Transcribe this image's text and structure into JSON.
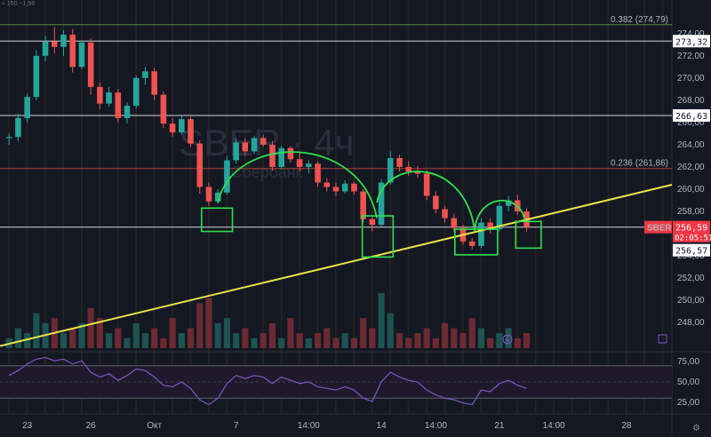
{
  "top_note": {
    "text": "≈ 150 −1,56"
  },
  "chart_data": {
    "type": "candlestick",
    "symbol": "SBER",
    "watermark": "SBER · 4ч",
    "watermark_sub": "Сбербанк",
    "ylim": [
      245.7,
      275.9
    ],
    "x_range": [
      -1,
      73
    ],
    "y_ticks": [
      "274,00",
      "272,00",
      "270,00",
      "268,00",
      "266,00",
      "264,00",
      "262,00",
      "260,00",
      "258,00",
      "256,00",
      "254,00",
      "252,00",
      "250,00",
      "248,00"
    ],
    "y_tick_values": [
      274,
      272,
      270,
      268,
      266,
      264,
      262,
      260,
      258,
      256,
      254,
      252,
      250,
      248
    ],
    "x_ticks": [
      {
        "label": "23",
        "x": 2
      },
      {
        "label": "26",
        "x": 9
      },
      {
        "label": "Окт",
        "x": 16
      },
      {
        "label": "7",
        "x": 25
      },
      {
        "label": "14:00",
        "x": 33
      },
      {
        "label": "14",
        "x": 41
      },
      {
        "label": "14:00",
        "x": 47
      },
      {
        "label": "21",
        "x": 54
      },
      {
        "label": "14:00",
        "x": 60
      },
      {
        "label": "28",
        "x": 68
      }
    ],
    "h_levels": [
      {
        "value": 274.8,
        "label": "0.382 (274,79)",
        "color": "#5b8a4a"
      },
      {
        "value": 273.32,
        "label": "273,32",
        "color": "#d1d4dc",
        "badge": true
      },
      {
        "value": 266.63,
        "label": "266,63",
        "color": "#d1d4dc",
        "badge": true
      },
      {
        "value": 261.86,
        "label": "0.236 (261,86)",
        "color": "#b23a3a"
      },
      {
        "value": 256.59,
        "label": "256,59",
        "color": "#d1d4dc"
      }
    ],
    "price_tag": {
      "symbol": "SBER",
      "price": "256,59",
      "countdown": "02:05:51",
      "low": "256,57",
      "color": "#f23645"
    },
    "candles": [
      [
        264.6,
        265.0,
        264.0,
        264.7
      ],
      [
        264.7,
        266.8,
        264.3,
        266.4
      ],
      [
        266.4,
        268.6,
        266.0,
        268.3
      ],
      [
        268.3,
        272.5,
        268.0,
        272.0
      ],
      [
        272.0,
        273.8,
        271.5,
        273.3
      ],
      [
        273.3,
        274.6,
        272.2,
        272.8
      ],
      [
        272.8,
        274.3,
        272.0,
        273.9
      ],
      [
        273.9,
        274.4,
        270.5,
        271.0
      ],
      [
        271.0,
        273.4,
        270.8,
        273.2
      ],
      [
        273.2,
        273.6,
        268.5,
        269.2
      ],
      [
        269.2,
        269.6,
        267.2,
        267.7
      ],
      [
        267.7,
        269.2,
        267.4,
        268.7
      ],
      [
        268.7,
        269.0,
        266.0,
        266.4
      ],
      [
        266.4,
        267.8,
        265.9,
        267.5
      ],
      [
        267.5,
        270.2,
        267.3,
        270.0
      ],
      [
        270.0,
        271.0,
        269.4,
        270.6
      ],
      [
        270.6,
        270.9,
        268.0,
        268.5
      ],
      [
        268.5,
        268.8,
        265.5,
        265.9
      ],
      [
        265.9,
        266.4,
        264.7,
        265.1
      ],
      [
        265.1,
        266.6,
        264.9,
        266.3
      ],
      [
        266.3,
        266.5,
        263.8,
        264.1
      ],
      [
        264.1,
        264.4,
        259.6,
        260.2
      ],
      [
        260.2,
        260.6,
        258.5,
        258.9
      ],
      [
        258.9,
        260.0,
        258.7,
        259.7
      ],
      [
        259.7,
        263.0,
        259.5,
        262.6
      ],
      [
        262.6,
        264.6,
        262.3,
        264.2
      ],
      [
        264.2,
        264.6,
        263.0,
        263.4
      ],
      [
        263.4,
        264.8,
        263.2,
        264.6
      ],
      [
        264.6,
        264.9,
        263.8,
        264.0
      ],
      [
        264.0,
        264.3,
        261.7,
        262.0
      ],
      [
        262.0,
        263.9,
        261.8,
        263.7
      ],
      [
        263.7,
        263.9,
        262.4,
        262.7
      ],
      [
        262.7,
        263.3,
        261.6,
        262.0
      ],
      [
        262.0,
        262.6,
        261.4,
        262.3
      ],
      [
        262.3,
        262.5,
        260.2,
        260.6
      ],
      [
        260.6,
        261.0,
        259.8,
        260.2
      ],
      [
        260.2,
        260.6,
        259.4,
        259.8
      ],
      [
        259.8,
        260.8,
        259.6,
        260.5
      ],
      [
        260.5,
        260.7,
        259.5,
        259.8
      ],
      [
        259.8,
        260.0,
        257.0,
        257.3
      ],
      [
        257.3,
        257.6,
        256.2,
        256.8
      ],
      [
        256.8,
        260.9,
        256.6,
        260.6
      ],
      [
        260.6,
        263.4,
        260.4,
        262.8
      ],
      [
        262.8,
        263.1,
        261.6,
        262.0
      ],
      [
        262.0,
        262.5,
        261.2,
        261.6
      ],
      [
        261.6,
        262.1,
        261.0,
        261.4
      ],
      [
        261.4,
        261.7,
        259.0,
        259.4
      ],
      [
        259.4,
        259.8,
        257.8,
        258.2
      ],
      [
        258.2,
        258.5,
        257.0,
        257.4
      ],
      [
        257.4,
        257.8,
        256.2,
        256.5
      ],
      [
        256.5,
        256.8,
        255.0,
        255.3
      ],
      [
        255.3,
        255.6,
        254.6,
        254.9
      ],
      [
        254.9,
        257.4,
        254.7,
        257.0
      ],
      [
        257.0,
        257.4,
        256.0,
        256.4
      ],
      [
        256.4,
        258.8,
        256.2,
        258.5
      ],
      [
        258.5,
        259.4,
        258.0,
        259.0
      ],
      [
        259.0,
        259.5,
        257.7,
        258.0
      ],
      [
        258.0,
        258.3,
        256.2,
        256.59
      ]
    ],
    "volume": [
      2,
      4,
      3,
      7,
      5,
      6,
      3,
      4,
      5,
      8,
      6,
      3,
      4,
      2,
      5,
      3,
      4,
      2,
      6,
      3,
      4,
      9,
      10,
      5,
      6,
      3,
      4,
      2,
      3,
      5,
      2,
      6,
      3,
      2,
      3,
      4,
      2,
      3,
      2,
      6,
      4,
      11,
      7,
      3,
      2,
      3,
      4,
      2,
      5,
      4,
      3,
      6,
      4,
      2,
      3,
      4,
      2,
      3
    ],
    "rsi": {
      "label": "RSI",
      "ticks": [
        "75,00",
        "50,00",
        "25,00"
      ],
      "tick_values": [
        75,
        50,
        25
      ],
      "ylim": [
        15,
        85
      ],
      "values": [
        58,
        64,
        72,
        78,
        80,
        76,
        78,
        72,
        76,
        62,
        56,
        60,
        52,
        58,
        66,
        64,
        56,
        46,
        44,
        50,
        42,
        28,
        22,
        30,
        48,
        58,
        54,
        58,
        56,
        48,
        56,
        52,
        48,
        50,
        44,
        42,
        40,
        44,
        40,
        30,
        26,
        50,
        62,
        56,
        52,
        50,
        40,
        34,
        30,
        28,
        24,
        22,
        40,
        38,
        48,
        52,
        46,
        42
      ],
      "color": "#7e57c2"
    },
    "trendline": {
      "from": [
        -1,
        245.9
      ],
      "to": [
        73,
        260.4
      ],
      "color": "#e9e44a"
    },
    "annotations": {
      "boxes": [
        {
          "x0": 21.2,
          "x1": 24.6,
          "y0": 256.2,
          "y1": 258.3
        },
        {
          "x0": 38.9,
          "x1": 42.3,
          "y0": 253.9,
          "y1": 257.6
        },
        {
          "x0": 49.1,
          "x1": 53.8,
          "y0": 254.1,
          "y1": 256.4
        },
        {
          "x0": 55.8,
          "x1": 58.6,
          "y0": 254.7,
          "y1": 257.1
        }
      ],
      "arcs": [
        {
          "x0": 23.0,
          "x1": 40.5,
          "peak": 264.6
        },
        {
          "x0": 40.5,
          "x1": 51.3,
          "peak": 262.4
        },
        {
          "x0": 51.3,
          "x1": 56.8,
          "peak": 259.2
        }
      ],
      "color": "#2ee04e"
    }
  }
}
